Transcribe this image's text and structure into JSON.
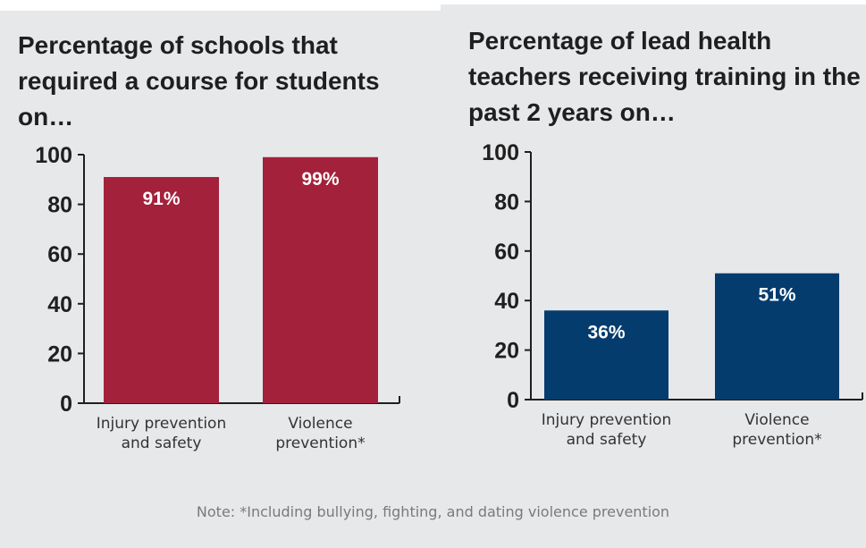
{
  "chart_data": [
    {
      "type": "bar",
      "title": "Percentage of schools that required a course for students on…",
      "categories": [
        [
          "Injury prevention",
          "and safety"
        ],
        [
          "Violence",
          "prevention*"
        ]
      ],
      "values": [
        91,
        99
      ],
      "data_labels": [
        "91%",
        "99%"
      ],
      "yticks": [
        0,
        20,
        40,
        60,
        80,
        100
      ],
      "ylim": [
        0,
        100
      ],
      "xlabel": "",
      "ylabel": "",
      "grid": false,
      "bar_color": "#a3213b"
    },
    {
      "type": "bar",
      "title": "Percentage of lead health teachers receiving training in the past 2 years on…",
      "categories": [
        [
          "Injury prevention",
          "and safety"
        ],
        [
          "Violence",
          "prevention*"
        ]
      ],
      "values": [
        36,
        51
      ],
      "data_labels": [
        "36%",
        "51%"
      ],
      "yticks": [
        0,
        20,
        40,
        60,
        80,
        100
      ],
      "ylim": [
        0,
        100
      ],
      "xlabel": "",
      "ylabel": "",
      "grid": false,
      "bar_color": "#053c6e"
    }
  ],
  "note": "Note: *Including bullying, fighting, and dating violence prevention",
  "colors": {
    "background": "#e7e8ea",
    "axis": "#1f1f1f"
  }
}
